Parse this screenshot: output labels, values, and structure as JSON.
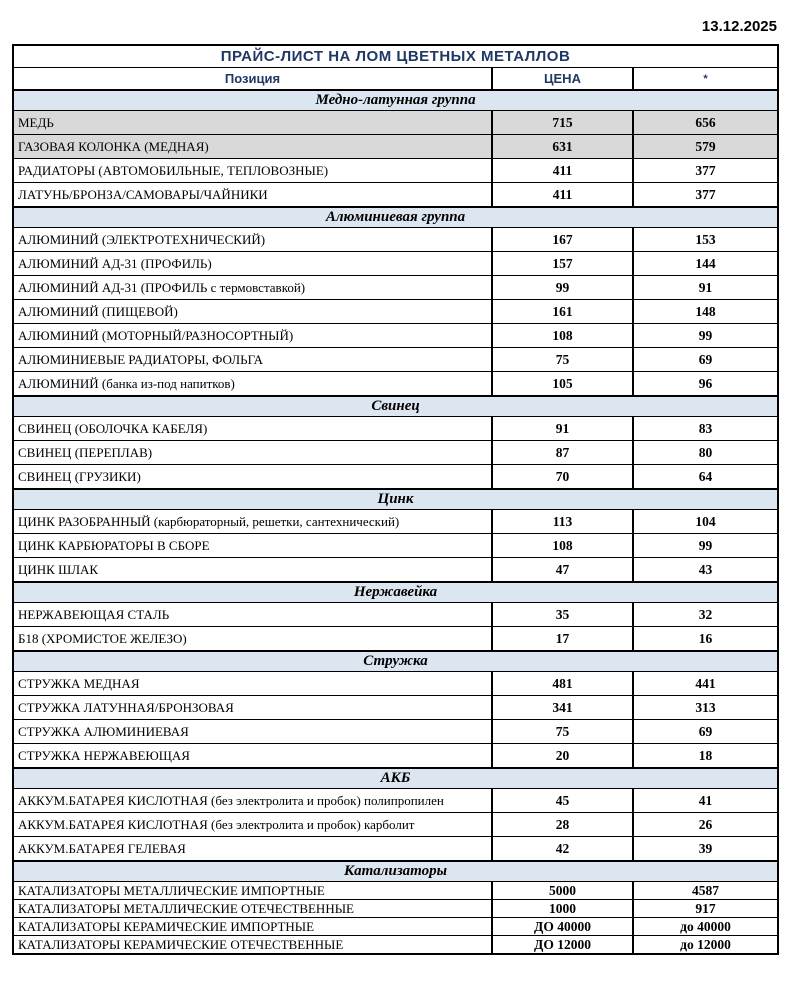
{
  "date": "13.12.2025",
  "title": "ПРАЙС-ЛИСТ НА ЛОМ ЦВЕТНЫХ МЕТАЛЛОВ",
  "columns": {
    "position": "Позиция",
    "price": "ЦЕНА",
    "alt_symbol": "*"
  },
  "colors": {
    "accent_navy": "#1F3864",
    "section_bg": "#DCE6F1",
    "shaded_row_bg": "#D9D9D9"
  },
  "sections": [
    {
      "name": "Медно-латунная группа",
      "compact": false,
      "rows": [
        {
          "label": "МЕДЬ",
          "price": "715",
          "alt": "656",
          "shaded": true
        },
        {
          "label": "ГАЗОВАЯ КОЛОНКА (МЕДНАЯ)",
          "price": "631",
          "alt": "579",
          "shaded": true
        },
        {
          "label": "РАДИАТОРЫ (АВТОМОБИЛЬНЫЕ, ТЕПЛОВОЗНЫЕ)",
          "price": "411",
          "alt": "377",
          "shaded": false
        },
        {
          "label": "ЛАТУНЬ/БРОНЗА/САМОВАРЫ/ЧАЙНИКИ",
          "price": "411",
          "alt": "377",
          "shaded": false
        }
      ]
    },
    {
      "name": "Алюминиевая группа",
      "compact": false,
      "rows": [
        {
          "label": "АЛЮМИНИЙ (ЭЛЕКТРОТЕХНИЧЕСКИЙ)",
          "price": "167",
          "alt": "153",
          "shaded": false
        },
        {
          "label": "АЛЮМИНИЙ АД-31 (ПРОФИЛЬ)",
          "price": "157",
          "alt": "144",
          "shaded": false
        },
        {
          "label": "АЛЮМИНИЙ АД-31 (ПРОФИЛЬ с термовставкой)",
          "price": "99",
          "alt": "91",
          "shaded": false
        },
        {
          "label": "АЛЮМИНИЙ (ПИЩЕВОЙ)",
          "price": "161",
          "alt": "148",
          "shaded": false
        },
        {
          "label": "АЛЮМИНИЙ (МОТОРНЫЙ/РАЗНОСОРТНЫЙ)",
          "price": "108",
          "alt": "99",
          "shaded": false
        },
        {
          "label": "АЛЮМИНИЕВЫЕ РАДИАТОРЫ, ФОЛЬГА",
          "price": "75",
          "alt": "69",
          "shaded": false
        },
        {
          "label": "АЛЮМИНИЙ (банка из-под напитков)",
          "price": "105",
          "alt": "96",
          "shaded": false
        }
      ]
    },
    {
      "name": "Свинец",
      "compact": false,
      "rows": [
        {
          "label": "СВИНЕЦ (ОБОЛОЧКА КАБЕЛЯ)",
          "price": "91",
          "alt": "83",
          "shaded": false
        },
        {
          "label": "СВИНЕЦ (ПЕРЕПЛАВ)",
          "price": "87",
          "alt": "80",
          "shaded": false
        },
        {
          "label": "СВИНЕЦ (ГРУЗИКИ)",
          "price": "70",
          "alt": "64",
          "shaded": false
        }
      ]
    },
    {
      "name": "Цинк",
      "compact": false,
      "rows": [
        {
          "label": "ЦИНК РАЗОБРАННЫЙ (карбюраторный, решетки, сантехнический)",
          "price": "113",
          "alt": "104",
          "shaded": false
        },
        {
          "label": "ЦИНК КАРБЮРАТОРЫ В СБОРЕ",
          "price": "108",
          "alt": "99",
          "shaded": false
        },
        {
          "label": "ЦИНК ШЛАК",
          "price": "47",
          "alt": "43",
          "shaded": false
        }
      ]
    },
    {
      "name": "Нержавейка",
      "compact": false,
      "rows": [
        {
          "label": "НЕРЖАВЕЮЩАЯ СТАЛЬ",
          "price": "35",
          "alt": "32",
          "shaded": false
        },
        {
          "label": "Б18 (ХРОМИСТОЕ ЖЕЛЕЗО)",
          "price": "17",
          "alt": "16",
          "shaded": false
        }
      ]
    },
    {
      "name": "Стружка",
      "compact": false,
      "rows": [
        {
          "label": "СТРУЖКА МЕДНАЯ",
          "price": "481",
          "alt": "441",
          "shaded": false
        },
        {
          "label": "СТРУЖКА ЛАТУННАЯ/БРОНЗОВАЯ",
          "price": "341",
          "alt": "313",
          "shaded": false
        },
        {
          "label": "СТРУЖКА АЛЮМИНИЕВАЯ",
          "price": "75",
          "alt": "69",
          "shaded": false
        },
        {
          "label": "СТРУЖКА НЕРЖАВЕЮЩАЯ",
          "price": "20",
          "alt": "18",
          "shaded": false
        }
      ]
    },
    {
      "name": "АКБ",
      "compact": false,
      "rows": [
        {
          "label": "АККУМ.БАТАРЕЯ КИСЛОТНАЯ (без электролита и пробок) полипропилен",
          "price": "45",
          "alt": "41",
          "shaded": false
        },
        {
          "label": "АККУМ.БАТАРЕЯ КИСЛОТНАЯ (без электролита и пробок) карболит",
          "price": "28",
          "alt": "26",
          "shaded": false
        },
        {
          "label": "АККУМ.БАТАРЕЯ ГЕЛЕВАЯ",
          "price": "42",
          "alt": "39",
          "shaded": false
        }
      ]
    },
    {
      "name": "Катализаторы",
      "compact": true,
      "rows": [
        {
          "label": "КАТАЛИЗАТОРЫ МЕТАЛЛИЧЕСКИЕ ИМПОРТНЫЕ",
          "price": "5000",
          "alt": "4587",
          "shaded": false
        },
        {
          "label": "КАТАЛИЗАТОРЫ МЕТАЛЛИЧЕСКИЕ ОТЕЧЕСТВЕННЫЕ",
          "price": "1000",
          "alt": "917",
          "shaded": false
        },
        {
          "label": "КАТАЛИЗАТОРЫ КЕРАМИЧЕСКИЕ ИМПОРТНЫЕ",
          "price": "ДО 40000",
          "alt": "до 40000",
          "shaded": false
        },
        {
          "label": "КАТАЛИЗАТОРЫ КЕРАМИЧЕСКИЕ ОТЕЧЕСТВЕННЫЕ",
          "price": "ДО 12000",
          "alt": "до 12000",
          "shaded": false
        }
      ]
    }
  ]
}
